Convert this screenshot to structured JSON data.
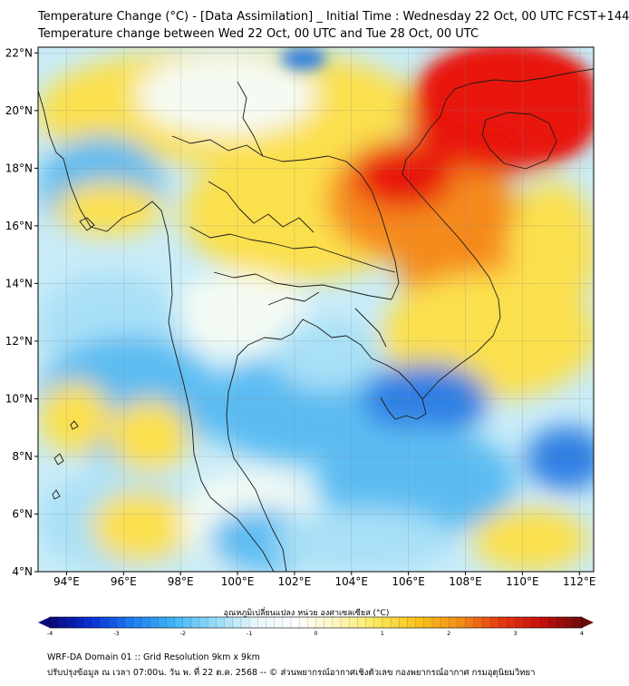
{
  "title_line1": "Temperature Change (°C) - [Data Assimilation] _ Initial Time : Wednesday 22 Oct, 00 UTC FCST+144",
  "title_line2": "Temperature change between Wed 22 Oct, 00 UTC and Tue 28 Oct, 00 UTC",
  "lat_labels": [
    "22°N",
    "20°N",
    "18°N",
    "16°N",
    "14°N",
    "12°N",
    "10°N",
    "8°N",
    "6°N",
    "4°N"
  ],
  "lon_labels": [
    "94°E",
    "96°E",
    "98°E",
    "100°E",
    "102°E",
    "104°E",
    "106°E",
    "108°E",
    "110°E",
    "112°E"
  ],
  "map_extent": {
    "lon_min": 93,
    "lon_max": 112.5,
    "lat_min": 4,
    "lat_max": 22.2
  },
  "colorbar": {
    "title": "อุณหภูมิเปลี่ยนแปลง หน่วย องศาเซลเซียส (°C)",
    "ticks": [
      "-4",
      "-3",
      "-2",
      "-1",
      "0",
      "1",
      "2",
      "3",
      "4"
    ],
    "min": -4,
    "max": 4,
    "colors": [
      "#08087a",
      "#0a2fd6",
      "#1f7cf0",
      "#3fb4f6",
      "#93daf7",
      "#e6f6fb",
      "#ffffff",
      "#fdf7c0",
      "#fbe85a",
      "#f9c21a",
      "#f2901a",
      "#e53a12",
      "#c8100c",
      "#6e0a08"
    ]
  },
  "field_colors": {
    "deep_warm": "#e8140f",
    "warm": "#f58a1c",
    "mild_warm": "#fbe04e",
    "neutral": "#f5fbf4",
    "mild_cool": "#a8e0f7",
    "cool": "#5cbcf2",
    "deep_cool": "#2d7fe3"
  },
  "footer_line1": "WRF-DA Domain 01 :: Grid Resolution 9km x 9km",
  "footer_line2": "ปรับปรุงข้อมูล ณ เวลา 07:00น. วัน พ. ที่ 22 ต.ค. 2568 -- © ส่วนพยากรณ์อากาศเชิงตัวเลข กองพยากรณ์อากาศ กรมอุตุนิยมวิทยา"
}
